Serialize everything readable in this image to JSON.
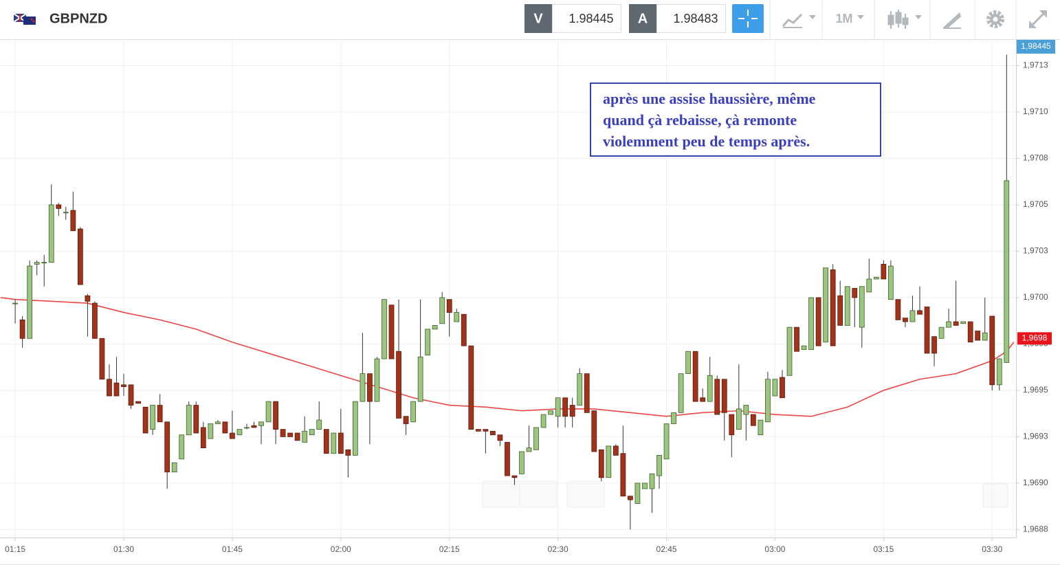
{
  "toolbar": {
    "symbol": "GBPNZD",
    "bid_label": "V",
    "bid": 1.98445,
    "ask_label": "A",
    "ask": 1.98483,
    "timeframe": "1M"
  },
  "chart_data": {
    "type": "candlestick",
    "up_color": "#9cc67f",
    "down_color": "#a3321a",
    "xlim": [
      72.9,
      213.3
    ],
    "xticks": [
      {
        "value": 75,
        "label": "01:15"
      },
      {
        "value": 90,
        "label": "01:30"
      },
      {
        "value": 105,
        "label": "01:45"
      },
      {
        "value": 120,
        "label": "02:00"
      },
      {
        "value": 135,
        "label": "02:15"
      },
      {
        "value": 150,
        "label": "02:30"
      },
      {
        "value": 165,
        "label": "02:45"
      },
      {
        "value": 180,
        "label": "03:00"
      },
      {
        "value": 195,
        "label": "03:15"
      },
      {
        "value": 210,
        "label": "03:30"
      }
    ],
    "ylim": [
      1.968707,
      1.971389
    ],
    "yticks": [
      {
        "value": 1.97125,
        "label": "1,9713"
      },
      {
        "value": 1.971,
        "label": "1,9710"
      },
      {
        "value": 1.97075,
        "label": "1,9708"
      },
      {
        "value": 1.9705,
        "label": "1,9705"
      },
      {
        "value": 1.97025,
        "label": "1,9703"
      },
      {
        "value": 1.97,
        "label": "1,9700"
      },
      {
        "value": 1.96975,
        "label": "1,9698"
      },
      {
        "value": 1.9695,
        "label": "1,9695"
      },
      {
        "value": 1.96925,
        "label": "1,9693"
      },
      {
        "value": 1.969,
        "label": "1,9690"
      },
      {
        "value": 1.96875,
        "label": "1,9688"
      }
    ],
    "grid": true,
    "x": [
      75,
      76,
      77,
      78,
      79,
      80,
      81,
      82,
      83,
      84,
      85,
      86,
      87,
      88,
      89,
      90,
      91,
      92,
      93,
      94,
      95,
      96,
      97,
      98,
      99,
      100,
      101,
      102,
      103,
      104,
      105,
      106,
      107,
      108,
      109,
      110,
      111,
      112,
      113,
      114,
      115,
      116,
      117,
      118,
      119,
      120,
      121,
      122,
      123,
      124,
      125,
      126,
      127,
      128,
      129,
      130,
      131,
      132,
      133,
      134,
      135,
      136,
      137,
      138,
      139,
      140,
      141,
      142,
      143,
      144,
      145,
      146,
      147,
      148,
      149,
      150,
      151,
      152,
      153,
      154,
      155,
      156,
      157,
      158,
      159,
      160,
      161,
      162,
      163,
      164,
      165,
      166,
      167,
      168,
      169,
      170,
      171,
      172,
      173,
      174,
      175,
      176,
      177,
      178,
      179,
      180,
      181,
      182,
      183,
      184,
      185,
      186,
      187,
      188,
      189,
      190,
      191,
      192,
      193,
      194,
      195,
      196,
      197,
      198,
      199,
      200,
      201,
      202,
      203,
      204,
      205,
      206,
      207,
      208,
      209,
      210,
      211,
      212
    ],
    "open": [
      1.96997,
      1.96988,
      1.96978,
      1.97018,
      1.97019,
      1.97019,
      1.9705,
      1.97046,
      1.97047,
      1.97037,
      1.97001,
      1.96997,
      1.96978,
      1.96956,
      1.96954,
      1.96953,
      1.96953,
      1.96944,
      1.96941,
      1.96929,
      1.96942,
      1.96933,
      1.96906,
      1.96913,
      1.96926,
      1.96942,
      1.9693,
      1.96924,
      1.96932,
      1.96933,
      1.96927,
      1.96926,
      1.9693,
      1.96931,
      1.96931,
      1.96933,
      1.96944,
      1.96929,
      1.96927,
      1.96927,
      1.96922,
      1.96926,
      1.96929,
      1.96929,
      1.96916,
      1.96927,
      1.96918,
      1.96915,
      1.96944,
      1.96959,
      1.96944,
      1.96967,
      1.96996,
      1.96971,
      1.96936,
      1.96933,
      1.96944,
      1.96969,
      1.96983,
      1.96986,
      1.96999,
      1.96987,
      1.96991,
      1.96974,
      1.96929,
      1.96929,
      1.96928,
      1.96926,
      1.96922,
      1.96904,
      1.96905,
      1.96917,
      1.96918,
      1.9693,
      1.96937,
      1.96936,
      1.96946,
      1.96942,
      1.96942,
      1.96959,
      1.96939,
      1.96918,
      1.96903,
      1.9692,
      1.96916,
      1.96893,
      1.96889,
      1.96897,
      1.96897,
      1.96904,
      1.96913,
      1.96932,
      1.96938,
      1.96959,
      1.96971,
      1.96946,
      1.96944,
      1.96956,
      1.96956,
      1.96937,
      1.96929,
      1.96937,
      1.96937,
      1.96926,
      1.96933,
      1.96947,
      1.96957,
      1.96958,
      1.96984,
      1.96972,
      1.96972,
      1.97,
      1.96976,
      1.97015,
      1.97001,
      1.96985,
      1.97005,
      1.96984,
      1.97003,
      1.9701,
      1.97018,
      1.96999,
      1.96999,
      1.96989,
      1.96987,
      1.96993,
      1.96995,
      1.96979,
      1.96978,
      1.96984,
      1.96987,
      1.96986,
      1.96987,
      1.96982,
      1.96977,
      1.9699,
      1.96953,
      1.96965
    ],
    "high": [
      1.96999,
      1.9699,
      1.9702,
      1.9702,
      1.97023,
      1.97061,
      1.97051,
      1.97049,
      1.97057,
      1.97038,
      1.97002,
      1.96998,
      1.96978,
      1.96964,
      1.96968,
      1.96959,
      1.96953,
      1.96944,
      1.96941,
      1.96942,
      1.96948,
      1.96933,
      1.96911,
      1.96926,
      1.96944,
      1.96944,
      1.96933,
      1.96932,
      1.96934,
      1.96933,
      1.96939,
      1.96929,
      1.96932,
      1.96933,
      1.96933,
      1.96944,
      1.96944,
      1.96929,
      1.96927,
      1.96927,
      1.96936,
      1.96929,
      1.96944,
      1.96929,
      1.96927,
      1.9694,
      1.96918,
      1.96944,
      1.96981,
      1.96959,
      1.96968,
      1.96999,
      1.96996,
      1.96999,
      1.96936,
      1.96944,
      1.96999,
      1.96983,
      1.96985,
      1.97003,
      1.96999,
      1.96994,
      1.96991,
      1.96974,
      1.96929,
      1.96929,
      1.96928,
      1.96926,
      1.96922,
      1.96904,
      1.96917,
      1.96931,
      1.9693,
      1.96937,
      1.96939,
      1.96946,
      1.96946,
      1.96946,
      1.96962,
      1.96959,
      1.96939,
      1.96918,
      1.9692,
      1.96921,
      1.96931,
      1.96893,
      1.969,
      1.969,
      1.96905,
      1.96915,
      1.96932,
      1.96938,
      1.96959,
      1.96971,
      1.96971,
      1.96951,
      1.96968,
      1.96958,
      1.96956,
      1.96937,
      1.96964,
      1.96942,
      1.96937,
      1.96934,
      1.9696,
      1.96956,
      1.96961,
      1.96984,
      1.96984,
      1.96974,
      1.97,
      1.97,
      1.97016,
      1.97018,
      1.97009,
      1.97006,
      1.97005,
      1.97006,
      1.97021,
      1.97011,
      1.9702,
      1.9702,
      1.96999,
      1.96989,
      1.97001,
      1.97006,
      1.96995,
      1.96979,
      1.96984,
      1.96994,
      1.97009,
      1.96987,
      1.96987,
      1.96982,
      1.97,
      1.9699,
      1.96967,
      1.97131
    ],
    "low": [
      1.96986,
      1.96973,
      1.96978,
      1.97012,
      1.97006,
      1.97019,
      1.97044,
      1.97042,
      1.97036,
      1.97007,
      1.96979,
      1.96978,
      1.96956,
      1.96947,
      1.96947,
      1.96947,
      1.9694,
      1.96943,
      1.96927,
      1.96926,
      1.96933,
      1.96897,
      1.96906,
      1.96913,
      1.96926,
      1.96927,
      1.96919,
      1.96924,
      1.96932,
      1.96927,
      1.96924,
      1.96926,
      1.96929,
      1.9693,
      1.96921,
      1.96933,
      1.96921,
      1.96925,
      1.96925,
      1.96923,
      1.96922,
      1.96926,
      1.96929,
      1.96916,
      1.96916,
      1.96916,
      1.96903,
      1.96915,
      1.96944,
      1.96921,
      1.96944,
      1.96967,
      1.96967,
      1.96935,
      1.96926,
      1.96933,
      1.96944,
      1.96969,
      1.96983,
      1.96986,
      1.96979,
      1.96987,
      1.96974,
      1.96929,
      1.96928,
      1.96916,
      1.96926,
      1.9692,
      1.96904,
      1.96899,
      1.96905,
      1.96917,
      1.96918,
      1.9693,
      1.96937,
      1.9693,
      1.9693,
      1.9693,
      1.96942,
      1.96938,
      1.96917,
      1.96901,
      1.96903,
      1.96915,
      1.96893,
      1.96875,
      1.96889,
      1.96897,
      1.96884,
      1.96897,
      1.96913,
      1.96932,
      1.96938,
      1.96959,
      1.96944,
      1.96944,
      1.96944,
      1.96937,
      1.96923,
      1.96914,
      1.96929,
      1.96923,
      1.96931,
      1.96926,
      1.96933,
      1.96947,
      1.96946,
      1.96958,
      1.96971,
      1.96972,
      1.96972,
      1.96974,
      1.96976,
      1.96974,
      1.96985,
      1.96985,
      1.96984,
      1.96973,
      1.97003,
      1.9701,
      1.9701,
      1.96999,
      1.96988,
      1.96984,
      1.96987,
      1.96991,
      1.9697,
      1.96963,
      1.96978,
      1.96984,
      1.96985,
      1.96986,
      1.96976,
      1.96977,
      1.96977,
      1.9695,
      1.9695,
      1.96965
    ],
    "close": [
      1.96997,
      1.96978,
      1.97017,
      1.97019,
      1.97019,
      1.9705,
      1.97048,
      1.97046,
      1.97036,
      1.97007,
      1.96998,
      1.96978,
      1.96956,
      1.96947,
      1.96947,
      1.96952,
      1.96942,
      1.96943,
      1.96927,
      1.96942,
      1.96933,
      1.96906,
      1.96911,
      1.96926,
      1.96942,
      1.96927,
      1.96919,
      1.96932,
      1.96933,
      1.96927,
      1.96924,
      1.96929,
      1.9693,
      1.9693,
      1.96933,
      1.96944,
      1.96929,
      1.96925,
      1.96925,
      1.96923,
      1.96928,
      1.96929,
      1.96934,
      1.96916,
      1.96927,
      1.96916,
      1.96915,
      1.96944,
      1.96959,
      1.96944,
      1.96967,
      1.96999,
      1.96967,
      1.96935,
      1.96932,
      1.96944,
      1.96968,
      1.96983,
      1.96985,
      1.97,
      1.96992,
      1.96992,
      1.96974,
      1.96929,
      1.96928,
      1.96928,
      1.96926,
      1.96923,
      1.96904,
      1.96903,
      1.96917,
      1.96919,
      1.9693,
      1.96937,
      1.96939,
      1.96946,
      1.96936,
      1.96936,
      1.96959,
      1.96938,
      1.96917,
      1.96903,
      1.9692,
      1.96915,
      1.96893,
      1.96891,
      1.969,
      1.969,
      1.96905,
      1.96915,
      1.96932,
      1.96938,
      1.96959,
      1.96971,
      1.96944,
      1.96944,
      1.96958,
      1.96937,
      1.96938,
      1.96926,
      1.9694,
      1.96942,
      1.96931,
      1.96934,
      1.96956,
      1.96956,
      1.96946,
      1.96984,
      1.96971,
      1.96974,
      1.97,
      1.96974,
      1.97016,
      1.96974,
      1.96985,
      1.97006,
      1.97,
      1.97006,
      1.9701,
      1.97011,
      1.9701,
      1.97017,
      1.96988,
      1.96987,
      1.96993,
      1.96991,
      1.9697,
      1.9697,
      1.96984,
      1.96987,
      1.96985,
      1.96987,
      1.96976,
      1.96977,
      1.96981,
      1.96953,
      1.96967,
      1.97063
    ],
    "overlay": {
      "color": "#ef4444",
      "x": [
        73,
        75,
        80,
        85,
        90,
        95,
        100,
        105,
        110,
        115,
        120,
        125,
        130,
        135,
        140,
        145,
        150,
        155,
        160,
        165,
        170,
        175,
        180,
        185,
        190,
        195,
        200,
        205,
        210,
        212,
        213
      ],
      "values": [
        1.97,
        1.96999,
        1.96998,
        1.96997,
        1.96992,
        1.96988,
        1.96983,
        1.96976,
        1.9697,
        1.96964,
        1.96958,
        1.96952,
        1.96946,
        1.96942,
        1.96941,
        1.96939,
        1.9694,
        1.9694,
        1.96938,
        1.96936,
        1.96938,
        1.96939,
        1.96937,
        1.96936,
        1.96941,
        1.9695,
        1.96956,
        1.96959,
        1.96966,
        1.96971,
        1.96976
      ]
    },
    "price_tag": {
      "value": 1.96978,
      "label": "1,9698",
      "color": "#e8141c"
    },
    "last_tag": "1,98445",
    "last_tag_color": "#4a9fd9",
    "annotation": [
      "après une assise haussière, même",
      "quand çà rebaisse, çà remonte",
      "violemment peu de temps après."
    ]
  }
}
